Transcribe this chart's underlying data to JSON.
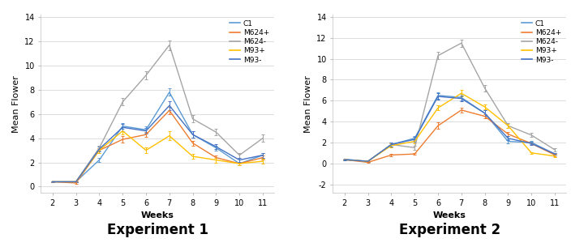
{
  "weeks": [
    2,
    3,
    4,
    5,
    6,
    7,
    8,
    9,
    10,
    11
  ],
  "exp1": {
    "C1": [
      0.4,
      0.4,
      2.2,
      5.0,
      4.7,
      7.8,
      4.3,
      3.2,
      1.9,
      2.6
    ],
    "M624+": [
      0.4,
      0.3,
      3.0,
      3.9,
      4.3,
      6.3,
      3.6,
      2.4,
      1.9,
      2.4
    ],
    "M624-": [
      0.4,
      0.4,
      3.2,
      7.0,
      9.2,
      11.7,
      5.6,
      4.5,
      2.6,
      4.0
    ],
    "M93+": [
      0.4,
      0.4,
      3.0,
      4.6,
      3.0,
      4.2,
      2.5,
      2.2,
      1.9,
      2.1
    ],
    "M93-": [
      0.4,
      0.4,
      3.1,
      4.9,
      4.6,
      6.7,
      4.3,
      3.3,
      2.2,
      2.6
    ]
  },
  "exp1_err": {
    "C1": [
      0.05,
      0.05,
      0.15,
      0.25,
      0.25,
      0.3,
      0.25,
      0.2,
      0.15,
      0.2
    ],
    "M624+": [
      0.05,
      0.05,
      0.2,
      0.25,
      0.2,
      0.3,
      0.2,
      0.15,
      0.1,
      0.15
    ],
    "M624-": [
      0.05,
      0.05,
      0.2,
      0.3,
      0.35,
      0.4,
      0.3,
      0.25,
      0.2,
      0.3
    ],
    "M93+": [
      0.05,
      0.05,
      0.2,
      0.3,
      0.25,
      0.35,
      0.2,
      0.2,
      0.15,
      0.2
    ],
    "M93-": [
      0.05,
      0.05,
      0.2,
      0.3,
      0.25,
      0.35,
      0.25,
      0.2,
      0.15,
      0.2
    ]
  },
  "exp2": {
    "C1": [
      0.4,
      0.2,
      1.8,
      2.4,
      6.5,
      6.3,
      4.8,
      2.1,
      2.0,
      0.9
    ],
    "M624+": [
      0.35,
      0.1,
      0.8,
      0.9,
      3.6,
      5.1,
      4.5,
      2.8,
      1.9,
      0.8
    ],
    "M624-": [
      0.35,
      0.2,
      1.8,
      1.5,
      10.3,
      11.5,
      7.2,
      3.6,
      2.7,
      1.3
    ],
    "M93+": [
      0.35,
      0.2,
      1.7,
      2.1,
      5.3,
      6.7,
      5.4,
      3.6,
      1.0,
      0.7
    ],
    "M93-": [
      0.35,
      0.2,
      1.8,
      2.3,
      6.4,
      6.2,
      4.8,
      2.4,
      1.9,
      0.9
    ]
  },
  "exp2_err": {
    "C1": [
      0.05,
      0.05,
      0.2,
      0.2,
      0.3,
      0.3,
      0.25,
      0.2,
      0.15,
      0.1
    ],
    "M624+": [
      0.05,
      0.05,
      0.1,
      0.1,
      0.3,
      0.25,
      0.2,
      0.2,
      0.15,
      0.1
    ],
    "M624-": [
      0.05,
      0.05,
      0.2,
      0.2,
      0.35,
      0.35,
      0.3,
      0.25,
      0.2,
      0.15
    ],
    "M93+": [
      0.05,
      0.05,
      0.2,
      0.2,
      0.25,
      0.3,
      0.25,
      0.2,
      0.1,
      0.1
    ],
    "M93-": [
      0.05,
      0.05,
      0.2,
      0.2,
      0.3,
      0.25,
      0.25,
      0.2,
      0.15,
      0.1
    ]
  },
  "colors": {
    "C1": "#5b9bd5",
    "M624+": "#ed7d31",
    "M624-": "#a5a5a5",
    "M93+": "#ffc000",
    "M93-": "#4472c4"
  },
  "ylim1": [
    -0.5,
    14.2
  ],
  "ylim2": [
    -2.8,
    14.2
  ],
  "yticks1": [
    0,
    2,
    4,
    6,
    8,
    10,
    12,
    14
  ],
  "yticks2": [
    -2,
    0,
    2,
    4,
    6,
    8,
    10,
    12,
    14
  ],
  "title1": "Experiment 1",
  "title2": "Experiment 2",
  "ylabel": "Mean Flower",
  "xlabel": "Weeks",
  "series_order": [
    "C1",
    "M624+",
    "M624-",
    "M93+",
    "M93-"
  ]
}
